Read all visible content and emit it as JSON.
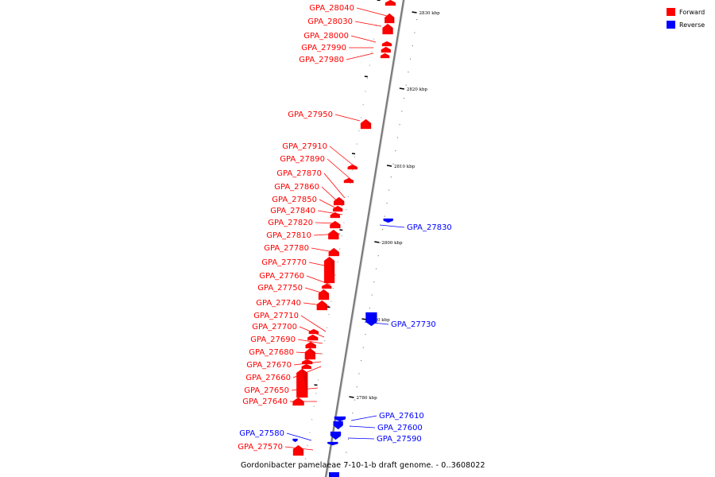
{
  "legend": {
    "items": [
      {
        "label": "Forward",
        "color": "#ff0000"
      },
      {
        "label": "Reverse",
        "color": "#0000ff"
      }
    ]
  },
  "caption": "Gordonibacter pamelaeae 7-10-1-b draft genome. - 0..3608022",
  "ticks": [
    "2830 kbp",
    "2820 kbp",
    "2810 kbp",
    "2800 kbp",
    "2790 kbp",
    "2780 kbp"
  ],
  "forward_color": "#ff0000",
  "reverse_color": "#0000ff",
  "genes": [
    {
      "label": "GPA_28040",
      "strand": "forward"
    },
    {
      "label": "GPA_28030",
      "strand": "forward"
    },
    {
      "label": "GPA_28000",
      "strand": "forward"
    },
    {
      "label": "GPA_27990",
      "strand": "forward"
    },
    {
      "label": "GPA_27980",
      "strand": "forward"
    },
    {
      "label": "GPA_27950",
      "strand": "forward"
    },
    {
      "label": "GPA_27910",
      "strand": "forward"
    },
    {
      "label": "GPA_27890",
      "strand": "forward"
    },
    {
      "label": "GPA_27870",
      "strand": "forward"
    },
    {
      "label": "GPA_27860",
      "strand": "forward"
    },
    {
      "label": "GPA_27850",
      "strand": "forward"
    },
    {
      "label": "GPA_27840",
      "strand": "forward"
    },
    {
      "label": "GPA_27820",
      "strand": "forward"
    },
    {
      "label": "GPA_27810",
      "strand": "forward"
    },
    {
      "label": "GPA_27780",
      "strand": "forward"
    },
    {
      "label": "GPA_27770",
      "strand": "forward"
    },
    {
      "label": "GPA_27760",
      "strand": "forward"
    },
    {
      "label": "GPA_27750",
      "strand": "forward"
    },
    {
      "label": "GPA_27740",
      "strand": "forward"
    },
    {
      "label": "GPA_27710",
      "strand": "forward"
    },
    {
      "label": "GPA_27700",
      "strand": "forward"
    },
    {
      "label": "GPA_27690",
      "strand": "forward"
    },
    {
      "label": "GPA_27680",
      "strand": "forward"
    },
    {
      "label": "GPA_27670",
      "strand": "forward"
    },
    {
      "label": "GPA_27660",
      "strand": "forward"
    },
    {
      "label": "GPA_27650",
      "strand": "forward"
    },
    {
      "label": "GPA_27640",
      "strand": "forward"
    },
    {
      "label": "GPA_27580",
      "strand": "reverse"
    },
    {
      "label": "GPA_27570",
      "strand": "forward"
    },
    {
      "label": "GPA_27830",
      "strand": "reverse"
    },
    {
      "label": "GPA_27730",
      "strand": "reverse"
    },
    {
      "label": "GPA_27610",
      "strand": "reverse"
    },
    {
      "label": "GPA_27600",
      "strand": "reverse"
    },
    {
      "label": "GPA_27590",
      "strand": "reverse"
    }
  ]
}
